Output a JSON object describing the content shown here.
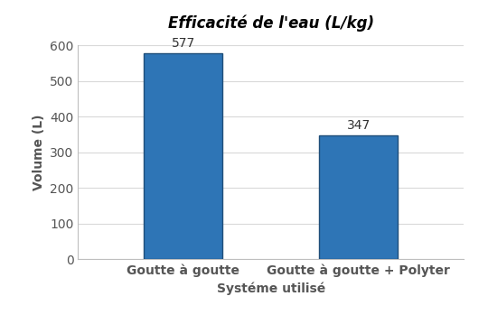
{
  "chart_data": {
    "type": "bar",
    "title": "Efficacité de l'eau (L/kg)",
    "x_label": "Systéme utilisé",
    "y_label": "Volume (L)",
    "categories": [
      "Goutte à goutte",
      "Goutte à goutte + Polyter"
    ],
    "values": [
      577,
      347
    ],
    "color": "#2e75b6",
    "ylim": [
      0,
      600
    ],
    "yticks": [
      0,
      100,
      200,
      300,
      400,
      500,
      600
    ],
    "grid": true,
    "data_labels": true
  }
}
